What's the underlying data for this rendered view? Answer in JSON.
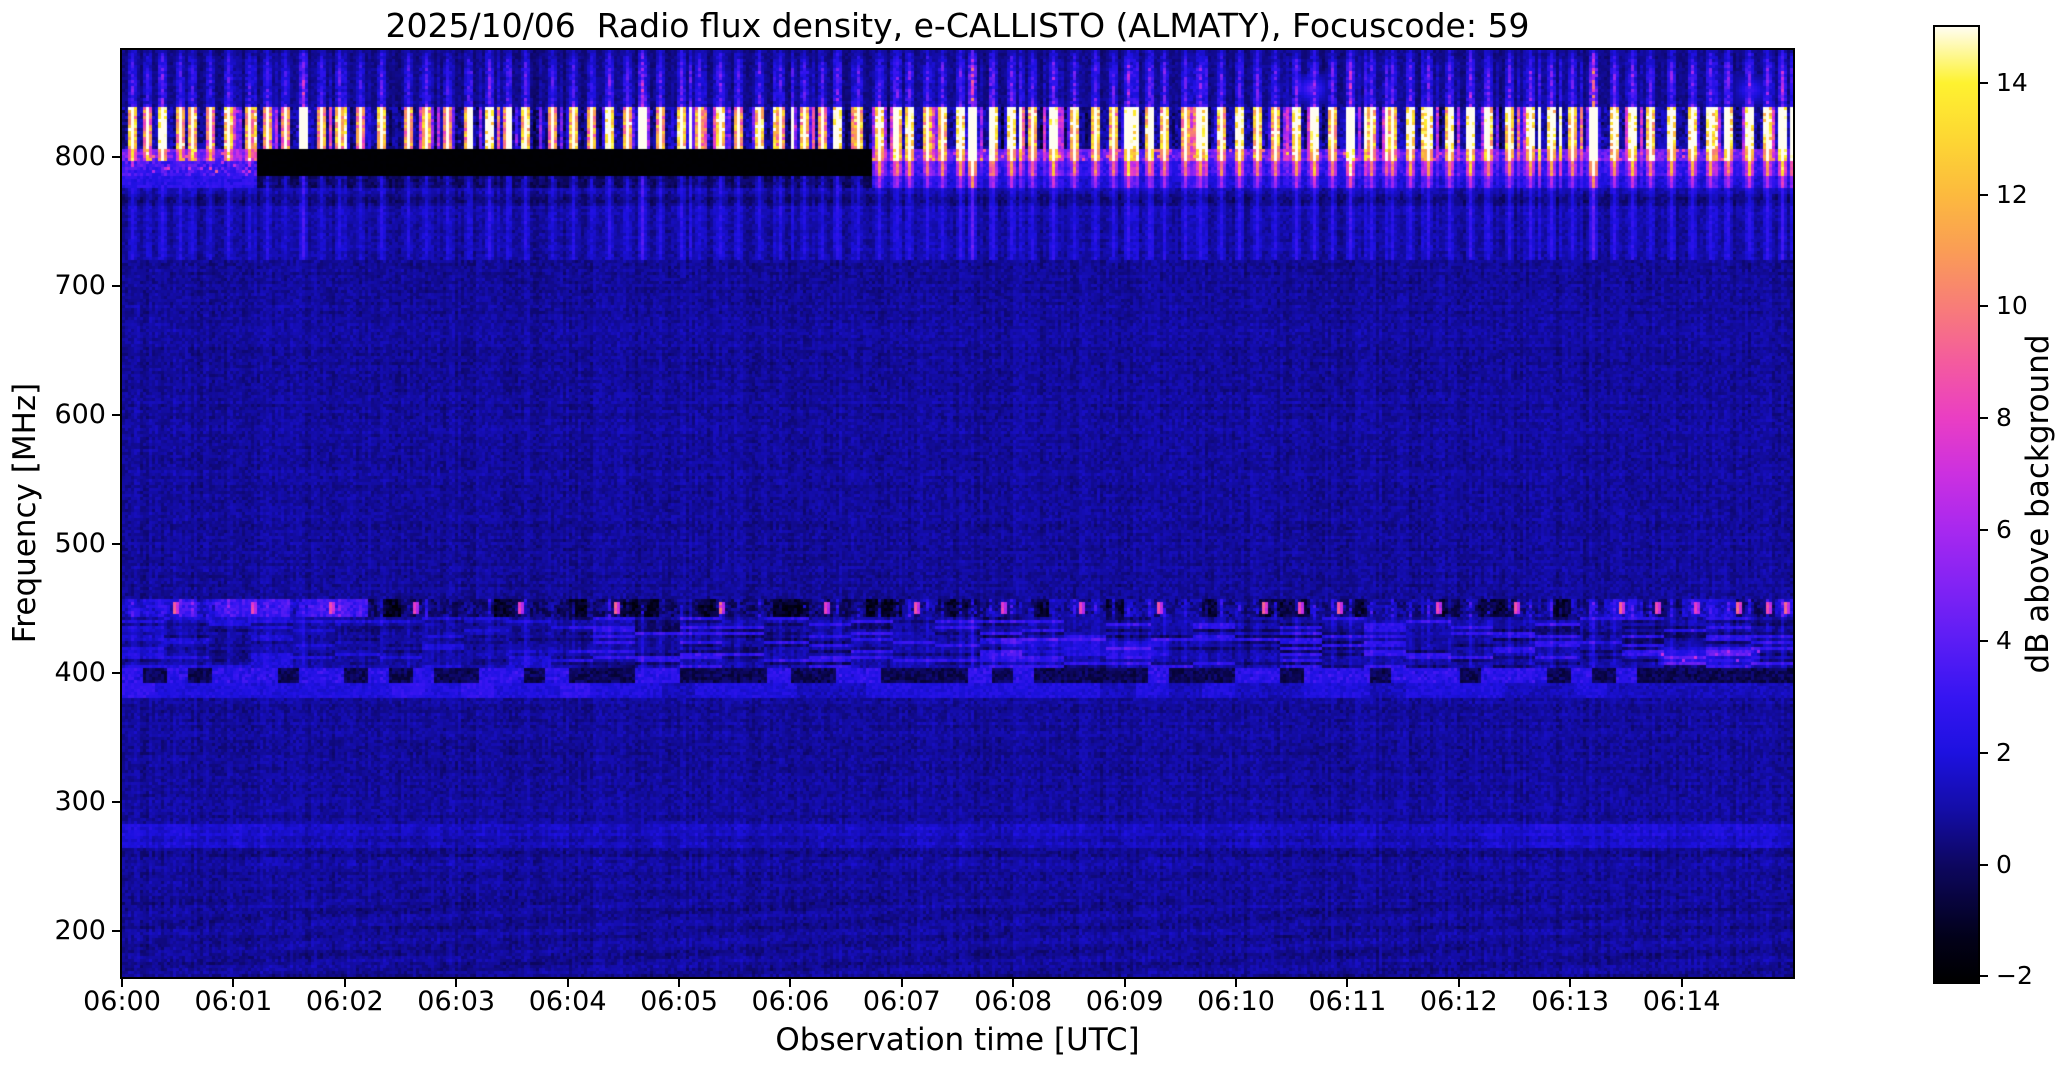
{
  "chart_data": {
    "type": "heatmap",
    "subtype": "radio-spectrogram",
    "title": "2025/10/06  Radio flux density, e-CALLISTO (ALMATY), Focuscode: 59",
    "xlabel": "Observation time [UTC]",
    "ylabel": "Frequency [MHz]",
    "x_tick_labels": [
      "06:00",
      "06:01",
      "06:02",
      "06:03",
      "06:04",
      "06:05",
      "06:06",
      "06:07",
      "06:08",
      "06:09",
      "06:10",
      "06:11",
      "06:12",
      "06:13",
      "06:14"
    ],
    "x_tick_minutes": [
      0,
      1,
      2,
      3,
      4,
      5,
      6,
      7,
      8,
      9,
      10,
      11,
      12,
      13,
      14
    ],
    "x_range_minutes": [
      0,
      15
    ],
    "y_tick_labels": [
      "800",
      "700",
      "600",
      "500",
      "400",
      "300",
      "200"
    ],
    "y_tick_values": [
      800,
      700,
      600,
      500,
      400,
      300,
      200
    ],
    "freq_range_mhz": [
      164,
      883
    ],
    "grid": false,
    "colorbar": {
      "label": "dB above background",
      "tick_labels": [
        "14",
        "12",
        "10",
        "8",
        "6",
        "4",
        "2",
        "0",
        "−2"
      ],
      "tick_values": [
        14,
        12,
        10,
        8,
        6,
        4,
        2,
        0,
        -2
      ],
      "value_range": [
        -2.1,
        15
      ],
      "colormap_name": "gnuplot2",
      "color_stops": [
        [
          -2.1,
          "#000000"
        ],
        [
          -1.3,
          "#02011a"
        ],
        [
          0,
          "#0d0760"
        ],
        [
          1,
          "#140da8"
        ],
        [
          2,
          "#1d11e0"
        ],
        [
          3,
          "#3615f2"
        ],
        [
          4,
          "#5b1df5"
        ],
        [
          5,
          "#8223f4"
        ],
        [
          6,
          "#a828ef"
        ],
        [
          7,
          "#cc30e0"
        ],
        [
          8,
          "#ea3ec3"
        ],
        [
          9,
          "#f45b9e"
        ],
        [
          10,
          "#f87d78"
        ],
        [
          11,
          "#fa9d55"
        ],
        [
          12,
          "#fcba3e"
        ],
        [
          13,
          "#fdd733"
        ],
        [
          14,
          "#fef230"
        ],
        [
          15,
          "#fffdf0"
        ]
      ]
    },
    "features": {
      "background_level_db": 0.85,
      "top_faint_zone": {
        "f_mhz": [
          838,
          883
        ],
        "level_db": 0.45
      },
      "rfi_mottle_band": {
        "f_mhz": [
          806,
          838
        ],
        "level_db": -1.35
      },
      "rfi_line_upper": {
        "f_mhz": [
          797,
          806
        ],
        "level_db": 2.5
      },
      "rfi_line_lower": {
        "f_mhz": [
          785,
          797
        ],
        "level_db": 2.2
      },
      "rfi_skirt": {
        "f_mhz": [
          775,
          785
        ],
        "level_db": 1.5
      },
      "blackout_rect": {
        "t_min": [
          1.2,
          6.72
        ],
        "f_mhz": [
          775,
          806
        ],
        "level_db": -2
      },
      "dark_line_765": {
        "f_mhz": [
          762,
          771
        ],
        "level_db": 0.3
      },
      "line_450": {
        "f_mhz": [
          443,
          457
        ],
        "bright_until_min": 2.2,
        "bright_after_min": 13.3
      },
      "mottle_band_400": {
        "f_mhz": [
          403,
          443
        ],
        "patch_boost_1": {
          "t_min": [
            7.9,
            9.4
          ],
          "f_mhz": [
            412,
            428
          ]
        },
        "patch_boost_2": {
          "t_min": [
            13.8,
            14.7
          ],
          "f_mhz": [
            406,
            420
          ]
        }
      },
      "dark_line_397": {
        "f_mhz": [
          393,
          402
        ]
      },
      "blue_band_387": {
        "f_mhz": [
          381,
          392
        ],
        "bright_until_min": 4.2
      },
      "faint_band_270": {
        "f_mhz": [
          264,
          279
        ]
      },
      "faint_band_255": {
        "f_mhz": [
          251,
          258
        ]
      },
      "blue_blobs": [
        {
          "t_min": 10.68,
          "f_mhz": 853,
          "db": 3.8
        },
        {
          "t_min": 14.62,
          "f_mhz": 852,
          "db": 2.6
        }
      ],
      "bright_streaks": [
        [
          0.07,
          7
        ],
        [
          0.22,
          5.5
        ],
        [
          0.35,
          9
        ],
        [
          0.5,
          6
        ],
        [
          0.62,
          6.5
        ],
        [
          0.78,
          5.5
        ],
        [
          0.95,
          7
        ],
        [
          1.12,
          6
        ],
        [
          1.28,
          6
        ],
        [
          1.45,
          5.5
        ],
        [
          1.62,
          11
        ],
        [
          1.78,
          6
        ],
        [
          1.95,
          6.5
        ],
        [
          2.13,
          5.5
        ],
        [
          2.32,
          7
        ],
        [
          2.55,
          6
        ],
        [
          2.72,
          6.5
        ],
        [
          2.9,
          5.5
        ],
        [
          3.1,
          6
        ],
        [
          3.28,
          8
        ],
        [
          3.45,
          6
        ],
        [
          3.62,
          7
        ],
        [
          3.85,
          6
        ],
        [
          4.05,
          7
        ],
        [
          4.2,
          6
        ],
        [
          4.35,
          8
        ],
        [
          4.52,
          6.5
        ],
        [
          4.65,
          12
        ],
        [
          4.82,
          6
        ],
        [
          5.02,
          7
        ],
        [
          5.18,
          6
        ],
        [
          5.35,
          8
        ],
        [
          5.52,
          6
        ],
        [
          5.72,
          7
        ],
        [
          5.9,
          6
        ],
        [
          6.12,
          7
        ],
        [
          6.28,
          6
        ],
        [
          6.42,
          9
        ],
        [
          6.6,
          6.5
        ],
        [
          6.78,
          8
        ],
        [
          6.95,
          7
        ],
        [
          7.05,
          8
        ],
        [
          7.22,
          6.5
        ],
        [
          7.35,
          7
        ],
        [
          7.5,
          8
        ],
        [
          7.62,
          15
        ],
        [
          7.8,
          7
        ],
        [
          7.98,
          8
        ],
        [
          8.15,
          6.5
        ],
        [
          8.35,
          9
        ],
        [
          8.55,
          7
        ],
        [
          8.72,
          7
        ],
        [
          8.9,
          6.5
        ],
        [
          9.02,
          10
        ],
        [
          9.2,
          7
        ],
        [
          9.35,
          7
        ],
        [
          9.52,
          6.5
        ],
        [
          9.68,
          8
        ],
        [
          9.85,
          7
        ],
        [
          10.02,
          8
        ],
        [
          10.18,
          7
        ],
        [
          10.35,
          7
        ],
        [
          10.52,
          8
        ],
        [
          10.68,
          9
        ],
        [
          10.85,
          7
        ],
        [
          11.02,
          11
        ],
        [
          11.2,
          7
        ],
        [
          11.38,
          7
        ],
        [
          11.55,
          8
        ],
        [
          11.72,
          8
        ],
        [
          11.9,
          7
        ],
        [
          12.08,
          9
        ],
        [
          12.25,
          7
        ],
        [
          12.45,
          7
        ],
        [
          12.62,
          8
        ],
        [
          12.82,
          8
        ],
        [
          13.0,
          7
        ],
        [
          13.2,
          15
        ],
        [
          13.38,
          8
        ],
        [
          13.55,
          9
        ],
        [
          13.72,
          7
        ],
        [
          13.9,
          8
        ],
        [
          14.08,
          8
        ],
        [
          14.25,
          8
        ],
        [
          14.42,
          7
        ],
        [
          14.6,
          9
        ],
        [
          14.75,
          8
        ],
        [
          14.88,
          10
        ]
      ],
      "pink_specks_450": [
        [
          0.45,
          5
        ],
        [
          1.15,
          4
        ],
        [
          1.85,
          4.5
        ],
        [
          2.6,
          4
        ],
        [
          3.55,
          4
        ],
        [
          4.42,
          5
        ],
        [
          5.35,
          4
        ],
        [
          6.3,
          4
        ],
        [
          7.1,
          4.5
        ],
        [
          7.9,
          4
        ],
        [
          8.6,
          4
        ],
        [
          9.3,
          4.5
        ],
        [
          10.22,
          5
        ],
        [
          10.55,
          4.5
        ],
        [
          10.92,
          5
        ],
        [
          11.8,
          4
        ],
        [
          12.5,
          4.5
        ],
        [
          13.45,
          5
        ],
        [
          13.75,
          4.5
        ],
        [
          14.12,
          4
        ],
        [
          14.5,
          5.5
        ],
        [
          14.75,
          4.5
        ],
        [
          14.93,
          5
        ]
      ]
    }
  }
}
